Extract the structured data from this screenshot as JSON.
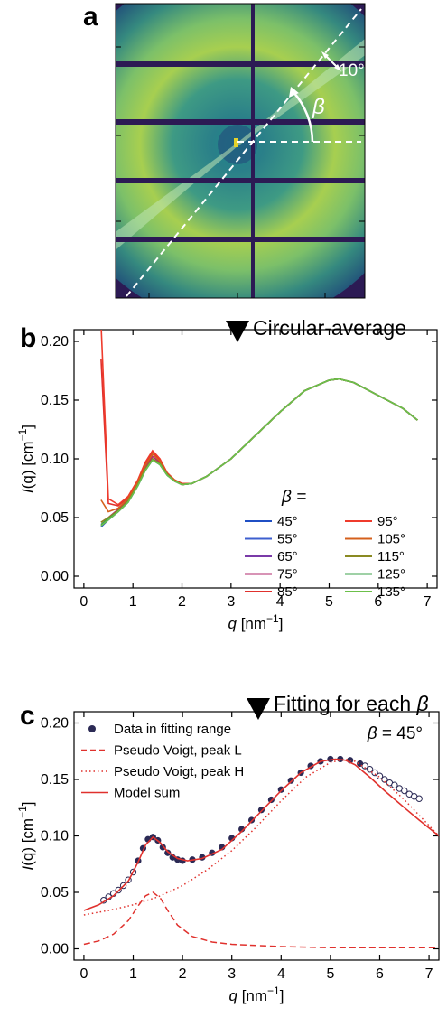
{
  "panels": {
    "a": "a",
    "b": "b",
    "c": "c"
  },
  "steps": {
    "circular_average": "Circular-average",
    "fitting_prefix": "Fitting for each ",
    "fitting_symbol": "β"
  },
  "detector": {
    "angle_label": "10°",
    "beta_label": "β"
  },
  "chart_data": [
    {
      "type": "line",
      "xlabel_var": "q",
      "xlabel_unit": " [nm",
      "xlabel_exp": "−1",
      "xlabel_close": "]",
      "ylabel_var": "I",
      "ylabel_arg": "(q) [cm",
      "ylabel_exp": "−1",
      "ylabel_close": "]",
      "xlim": [
        -0.2,
        7.2
      ],
      "ylim": [
        -0.01,
        0.21
      ],
      "xticks": [
        0,
        1,
        2,
        3,
        4,
        5,
        6,
        7
      ],
      "yticks": [
        0.0,
        0.05,
        0.1,
        0.15,
        0.2
      ],
      "ytick_labels": [
        "0.00",
        "0.05",
        "0.10",
        "0.15",
        "0.20"
      ],
      "legend_title": "β =",
      "legend_placement": "center-right",
      "x": [
        0.35,
        0.5,
        0.7,
        0.9,
        1.1,
        1.25,
        1.4,
        1.55,
        1.7,
        1.85,
        2.0,
        2.2,
        2.5,
        3.0,
        3.5,
        4.0,
        4.5,
        5.0,
        5.2,
        5.5,
        6.0,
        6.5,
        6.8
      ],
      "series": [
        {
          "name": "45°",
          "color": "#1f4fc4",
          "values": [
            0.042,
            0.048,
            0.055,
            0.063,
            0.077,
            0.09,
            0.099,
            0.095,
            0.086,
            0.081,
            0.078,
            0.079,
            0.085,
            0.1,
            0.12,
            0.14,
            0.158,
            0.167,
            0.168,
            0.165,
            0.154,
            0.143,
            0.133
          ]
        },
        {
          "name": "55°",
          "color": "#3e5fcf",
          "values": [
            0.043,
            0.048,
            0.055,
            0.063,
            0.077,
            0.09,
            0.1,
            0.095,
            0.086,
            0.081,
            0.078,
            0.079,
            0.085,
            0.1,
            0.12,
            0.14,
            0.158,
            0.167,
            0.168,
            0.165,
            0.154,
            0.143,
            0.133
          ]
        },
        {
          "name": "65°",
          "color": "#7a3aa8",
          "values": [
            0.044,
            0.049,
            0.056,
            0.064,
            0.078,
            0.091,
            0.1,
            0.096,
            0.087,
            0.081,
            0.078,
            0.079,
            0.085,
            0.1,
            0.12,
            0.14,
            0.158,
            0.167,
            0.168,
            0.165,
            0.154,
            0.143,
            0.133
          ]
        },
        {
          "name": "75°",
          "color": "#b02a6e",
          "values": [
            0.046,
            0.05,
            0.057,
            0.065,
            0.079,
            0.093,
            0.102,
            0.097,
            0.087,
            0.082,
            0.078,
            0.079,
            0.085,
            0.1,
            0.12,
            0.14,
            0.158,
            0.167,
            0.168,
            0.165,
            0.154,
            0.143,
            0.133
          ]
        },
        {
          "name": "85°",
          "color": "#e0312d",
          "values": [
            0.185,
            0.062,
            0.06,
            0.067,
            0.081,
            0.096,
            0.106,
            0.099,
            0.088,
            0.082,
            0.079,
            0.079,
            0.085,
            0.1,
            0.12,
            0.14,
            0.158,
            0.167,
            0.168,
            0.165,
            0.154,
            0.143,
            0.133
          ]
        },
        {
          "name": "95°",
          "color": "#ef3b2c",
          "values": [
            0.215,
            0.066,
            0.061,
            0.068,
            0.082,
            0.097,
            0.107,
            0.1,
            0.088,
            0.082,
            0.079,
            0.079,
            0.085,
            0.1,
            0.12,
            0.14,
            0.158,
            0.167,
            0.168,
            0.165,
            0.154,
            0.143,
            0.133
          ]
        },
        {
          "name": "105°",
          "color": "#d5601c",
          "values": [
            0.065,
            0.055,
            0.058,
            0.066,
            0.08,
            0.094,
            0.104,
            0.098,
            0.087,
            0.082,
            0.078,
            0.079,
            0.085,
            0.1,
            0.12,
            0.14,
            0.158,
            0.167,
            0.168,
            0.165,
            0.154,
            0.143,
            0.133
          ]
        },
        {
          "name": "115°",
          "color": "#8a8a22",
          "values": [
            0.046,
            0.05,
            0.056,
            0.064,
            0.078,
            0.091,
            0.1,
            0.096,
            0.087,
            0.081,
            0.078,
            0.079,
            0.085,
            0.1,
            0.12,
            0.14,
            0.158,
            0.167,
            0.168,
            0.165,
            0.154,
            0.143,
            0.133
          ]
        },
        {
          "name": "125°",
          "color": "#3fa34d",
          "values": [
            0.044,
            0.049,
            0.055,
            0.063,
            0.077,
            0.09,
            0.099,
            0.095,
            0.086,
            0.081,
            0.078,
            0.079,
            0.085,
            0.1,
            0.12,
            0.14,
            0.158,
            0.167,
            0.168,
            0.165,
            0.154,
            0.143,
            0.133
          ]
        },
        {
          "name": "135°",
          "color": "#6cc04a",
          "values": [
            0.043,
            0.048,
            0.055,
            0.063,
            0.077,
            0.09,
            0.099,
            0.095,
            0.086,
            0.081,
            0.078,
            0.079,
            0.085,
            0.1,
            0.12,
            0.14,
            0.158,
            0.167,
            0.168,
            0.165,
            0.154,
            0.143,
            0.133
          ]
        }
      ]
    },
    {
      "type": "line",
      "xlabel_var": "q",
      "xlabel_unit": " [nm",
      "xlabel_exp": "−1",
      "xlabel_close": "]",
      "ylabel_var": "I",
      "ylabel_arg": "(q) [cm",
      "ylabel_exp": "−1",
      "ylabel_close": "]",
      "xlim": [
        -0.2,
        7.2
      ],
      "ylim": [
        -0.01,
        0.21
      ],
      "xticks": [
        0,
        1,
        2,
        3,
        4,
        5,
        6,
        7
      ],
      "yticks": [
        0.0,
        0.05,
        0.1,
        0.15,
        0.2
      ],
      "ytick_labels": [
        "0.00",
        "0.05",
        "0.10",
        "0.15",
        "0.20"
      ],
      "annotation_symbol": "β",
      "annotation_value": " = 45°",
      "legend_placement": "top-left",
      "legend": [
        {
          "key": "data_fit",
          "label": "Data in fitting range",
          "style": "marker"
        },
        {
          "key": "peak_l",
          "label": "Pseudo Voigt, peak L",
          "style": "dashed"
        },
        {
          "key": "peak_h",
          "label": "Pseudo Voigt, peak H",
          "style": "dotted"
        },
        {
          "key": "model",
          "label": "Model sum",
          "style": "solid"
        }
      ],
      "data_outside_range": {
        "x": [
          0.4,
          0.5,
          0.6,
          0.7,
          0.8,
          0.9,
          1.0,
          5.7,
          5.8,
          5.9,
          6.0,
          6.1,
          6.2,
          6.3,
          6.4,
          6.5,
          6.6,
          6.7,
          6.8
        ],
        "y": [
          0.043,
          0.046,
          0.049,
          0.052,
          0.056,
          0.061,
          0.068,
          0.162,
          0.159,
          0.156,
          0.153,
          0.15,
          0.147,
          0.145,
          0.142,
          0.14,
          0.137,
          0.135,
          0.133
        ]
      },
      "data_fit": {
        "x": [
          1.1,
          1.2,
          1.3,
          1.4,
          1.5,
          1.6,
          1.7,
          1.8,
          1.9,
          2.0,
          2.2,
          2.4,
          2.6,
          2.8,
          3.0,
          3.2,
          3.4,
          3.6,
          3.8,
          4.0,
          4.2,
          4.4,
          4.6,
          4.8,
          5.0,
          5.2,
          5.4,
          5.6
        ],
        "y": [
          0.078,
          0.089,
          0.097,
          0.099,
          0.096,
          0.09,
          0.085,
          0.081,
          0.079,
          0.078,
          0.079,
          0.081,
          0.085,
          0.09,
          0.098,
          0.106,
          0.114,
          0.123,
          0.132,
          0.141,
          0.149,
          0.156,
          0.162,
          0.166,
          0.168,
          0.168,
          0.167,
          0.164
        ]
      },
      "model": {
        "x": [
          0.0,
          0.3,
          0.6,
          0.9,
          1.1,
          1.25,
          1.4,
          1.55,
          1.7,
          1.9,
          2.1,
          2.4,
          2.8,
          3.2,
          3.6,
          4.0,
          4.4,
          4.8,
          5.1,
          5.3,
          5.5,
          5.8,
          6.1,
          6.5,
          6.8,
          7.2
        ],
        "y": [
          0.034,
          0.039,
          0.047,
          0.06,
          0.077,
          0.092,
          0.099,
          0.094,
          0.086,
          0.08,
          0.078,
          0.08,
          0.088,
          0.104,
          0.122,
          0.14,
          0.156,
          0.166,
          0.168,
          0.167,
          0.163,
          0.152,
          0.14,
          0.125,
          0.114,
          0.1
        ]
      },
      "peak_l": {
        "x": [
          0.0,
          0.3,
          0.6,
          0.9,
          1.1,
          1.25,
          1.4,
          1.55,
          1.7,
          1.9,
          2.2,
          2.6,
          3.0,
          3.5,
          4.0,
          5.0,
          6.0,
          7.2
        ],
        "y": [
          0.004,
          0.007,
          0.013,
          0.025,
          0.038,
          0.047,
          0.05,
          0.045,
          0.034,
          0.021,
          0.011,
          0.006,
          0.004,
          0.003,
          0.002,
          0.001,
          0.001,
          0.001
        ]
      },
      "peak_h": {
        "x": [
          0.0,
          0.5,
          1.0,
          1.5,
          2.0,
          2.5,
          3.0,
          3.5,
          4.0,
          4.5,
          5.0,
          5.3,
          5.5,
          6.0,
          6.5,
          7.2
        ],
        "y": [
          0.03,
          0.034,
          0.039,
          0.046,
          0.056,
          0.07,
          0.087,
          0.108,
          0.131,
          0.152,
          0.165,
          0.168,
          0.166,
          0.152,
          0.132,
          0.1
        ]
      }
    }
  ]
}
